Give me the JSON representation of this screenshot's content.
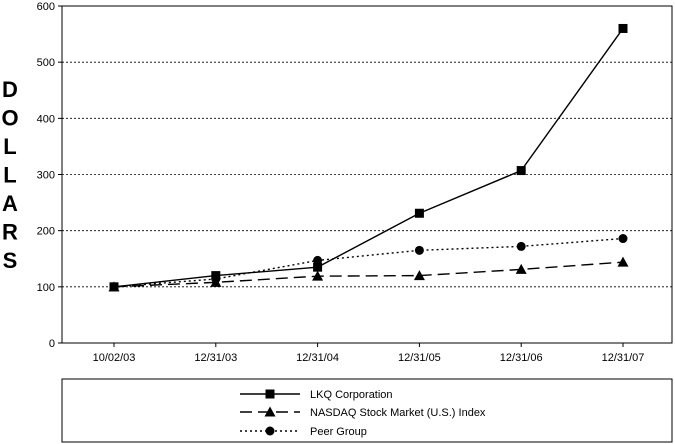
{
  "chart_data": {
    "type": "line",
    "ylabel": "DOLLARS",
    "xlabel": "",
    "title": "",
    "categories": [
      "10/02/03",
      "12/31/03",
      "12/31/04",
      "12/31/05",
      "12/31/06",
      "12/31/07"
    ],
    "ylim": [
      0,
      600
    ],
    "yticks": [
      0,
      100,
      200,
      300,
      400,
      500,
      600
    ],
    "grid": "horizontal dashed",
    "legend_position": "bottom",
    "series": [
      {
        "name": "LKQ Corporation",
        "line": "solid",
        "marker": "square",
        "values": [
          100,
          120,
          135,
          231,
          307,
          560
        ]
      },
      {
        "name": "NASDAQ Stock Market (U.S.) Index",
        "line": "dashed",
        "marker": "triangle",
        "values": [
          100,
          108,
          119,
          120,
          131,
          144
        ]
      },
      {
        "name": "Peer Group",
        "line": "dotted",
        "marker": "circle",
        "values": [
          100,
          114,
          147,
          165,
          172,
          186
        ]
      }
    ]
  }
}
